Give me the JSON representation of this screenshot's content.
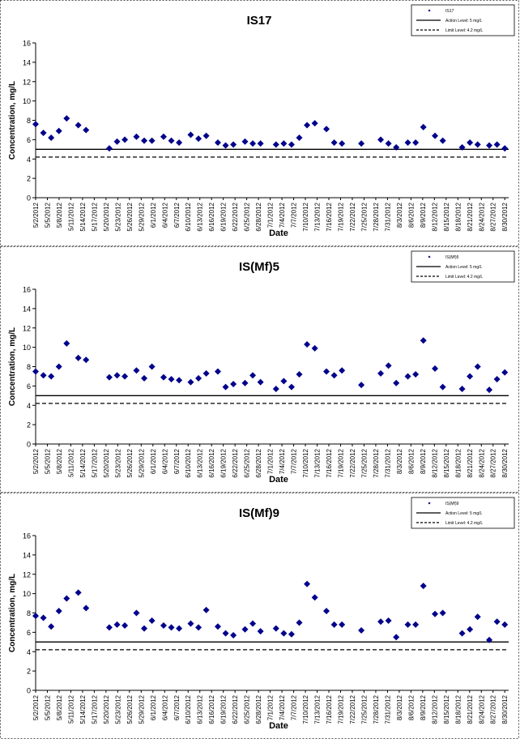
{
  "chart_data": [
    {
      "type": "scatter",
      "title": "IS17",
      "xlabel": "Date",
      "ylabel": "Concentration, mg/L",
      "ylim": [
        0,
        16
      ],
      "yticks": [
        "0",
        "2",
        "4",
        "6",
        "8",
        "10",
        "12",
        "14",
        "16"
      ],
      "xlim": [
        "2012-05-02",
        "2012-09-01"
      ],
      "date_tick_labels": [
        "5/2/2012",
        "5/5/2012",
        "5/8/2012",
        "5/11/2012",
        "5/14/2012",
        "5/17/2012",
        "5/20/2012",
        "5/23/2012",
        "5/26/2012",
        "5/29/2012",
        "6/1/2012",
        "6/4/2012",
        "6/7/2012",
        "6/10/2012",
        "6/13/2012",
        "6/16/2012",
        "6/19/2012",
        "6/22/2012",
        "6/25/2012",
        "6/28/2012",
        "7/1/2012",
        "7/4/2012",
        "7/7/2012",
        "7/10/2012",
        "7/13/2012",
        "7/16/2012",
        "7/19/2012",
        "7/22/2012",
        "7/25/2012",
        "7/28/2012",
        "7/31/2012",
        "8/3/2012",
        "8/6/2012",
        "8/9/2012",
        "8/12/2012",
        "8/15/2012",
        "8/18/2012",
        "8/21/2012",
        "8/24/2012",
        "8/27/2012",
        "8/30/2012"
      ],
      "legend": {
        "placement": "top-right",
        "entries": [
          "IS17",
          "Action Level: 5 mg/L",
          "Limit Level: 4.2 mg/L"
        ]
      },
      "lines": [
        {
          "value": 5,
          "style": "solid",
          "color": "#000000"
        },
        {
          "value": 4.2,
          "style": "dashed",
          "color": "#000000"
        }
      ],
      "series": [
        {
          "name": "IS17",
          "color": "#00008B",
          "marker": "diamond",
          "points": [
            [
              "2012-05-02",
              7.6
            ],
            [
              "2012-05-04",
              6.7
            ],
            [
              "2012-05-06",
              6.2
            ],
            [
              "2012-05-08",
              6.9
            ],
            [
              "2012-05-10",
              8.2
            ],
            [
              "2012-05-13",
              7.5
            ],
            [
              "2012-05-15",
              7.0
            ],
            [
              "2012-05-21",
              5.1
            ],
            [
              "2012-05-23",
              5.8
            ],
            [
              "2012-05-25",
              6.0
            ],
            [
              "2012-05-28",
              6.3
            ],
            [
              "2012-05-30",
              5.9
            ],
            [
              "2012-06-01",
              5.9
            ],
            [
              "2012-06-04",
              6.3
            ],
            [
              "2012-06-06",
              5.9
            ],
            [
              "2012-06-08",
              5.7
            ],
            [
              "2012-06-11",
              6.5
            ],
            [
              "2012-06-13",
              6.1
            ],
            [
              "2012-06-15",
              6.4
            ],
            [
              "2012-06-18",
              5.7
            ],
            [
              "2012-06-20",
              5.4
            ],
            [
              "2012-06-22",
              5.5
            ],
            [
              "2012-06-25",
              5.8
            ],
            [
              "2012-06-27",
              5.6
            ],
            [
              "2012-06-29",
              5.6
            ],
            [
              "2012-07-03",
              5.5
            ],
            [
              "2012-07-05",
              5.6
            ],
            [
              "2012-07-07",
              5.5
            ],
            [
              "2012-07-09",
              6.2
            ],
            [
              "2012-07-11",
              7.5
            ],
            [
              "2012-07-13",
              7.7
            ],
            [
              "2012-07-16",
              7.1
            ],
            [
              "2012-07-18",
              5.7
            ],
            [
              "2012-07-20",
              5.6
            ],
            [
              "2012-07-25",
              5.6
            ],
            [
              "2012-07-30",
              6.0
            ],
            [
              "2012-08-01",
              5.6
            ],
            [
              "2012-08-03",
              5.2
            ],
            [
              "2012-08-06",
              5.7
            ],
            [
              "2012-08-08",
              5.7
            ],
            [
              "2012-08-10",
              7.3
            ],
            [
              "2012-08-13",
              6.4
            ],
            [
              "2012-08-15",
              5.9
            ],
            [
              "2012-08-20",
              5.2
            ],
            [
              "2012-08-22",
              5.7
            ],
            [
              "2012-08-24",
              5.5
            ],
            [
              "2012-08-27",
              5.4
            ],
            [
              "2012-08-29",
              5.5
            ],
            [
              "2012-08-31",
              5.1
            ]
          ]
        }
      ]
    },
    {
      "type": "scatter",
      "title": "IS(Mf)5",
      "xlabel": "Date",
      "ylabel": "Concentration, mg/L",
      "ylim": [
        0,
        16
      ],
      "yticks": [
        "0",
        "2",
        "4",
        "6",
        "8",
        "10",
        "12",
        "14",
        "16"
      ],
      "xlim": [
        "2012-05-02",
        "2012-09-01"
      ],
      "date_tick_labels": [
        "5/2/2012",
        "5/5/2012",
        "5/8/2012",
        "5/11/2012",
        "5/14/2012",
        "5/17/2012",
        "5/20/2012",
        "5/23/2012",
        "5/26/2012",
        "5/29/2012",
        "6/1/2012",
        "6/4/2012",
        "6/7/2012",
        "6/10/2012",
        "6/13/2012",
        "6/16/2012",
        "6/19/2012",
        "6/22/2012",
        "6/25/2012",
        "6/28/2012",
        "7/1/2012",
        "7/4/2012",
        "7/7/2012",
        "7/10/2012",
        "7/13/2012",
        "7/16/2012",
        "7/19/2012",
        "7/22/2012",
        "7/25/2012",
        "7/28/2012",
        "7/31/2012",
        "8/3/2012",
        "8/6/2012",
        "8/9/2012",
        "8/12/2012",
        "8/15/2012",
        "8/18/2012",
        "8/21/2012",
        "8/24/2012",
        "8/27/2012",
        "8/30/2012"
      ],
      "legend": {
        "placement": "top-right",
        "entries": [
          "IS(Mf)5",
          "Action Level: 5 mg/L",
          "Limit Level: 4.2 mg/L"
        ]
      },
      "lines": [
        {
          "value": 5,
          "style": "solid",
          "color": "#000000"
        },
        {
          "value": 4.2,
          "style": "dashed",
          "color": "#000000"
        }
      ],
      "series": [
        {
          "name": "IS(Mf)5",
          "color": "#00008B",
          "marker": "diamond",
          "points": [
            [
              "2012-05-02",
              7.5
            ],
            [
              "2012-05-04",
              7.1
            ],
            [
              "2012-05-06",
              7.0
            ],
            [
              "2012-05-08",
              8.0
            ],
            [
              "2012-05-10",
              10.4
            ],
            [
              "2012-05-13",
              8.9
            ],
            [
              "2012-05-15",
              8.7
            ],
            [
              "2012-05-21",
              6.9
            ],
            [
              "2012-05-23",
              7.1
            ],
            [
              "2012-05-25",
              7.0
            ],
            [
              "2012-05-28",
              7.6
            ],
            [
              "2012-05-30",
              6.8
            ],
            [
              "2012-06-01",
              8.0
            ],
            [
              "2012-06-04",
              6.9
            ],
            [
              "2012-06-06",
              6.7
            ],
            [
              "2012-06-08",
              6.6
            ],
            [
              "2012-06-11",
              6.4
            ],
            [
              "2012-06-13",
              6.8
            ],
            [
              "2012-06-15",
              7.3
            ],
            [
              "2012-06-18",
              7.5
            ],
            [
              "2012-06-20",
              5.9
            ],
            [
              "2012-06-22",
              6.2
            ],
            [
              "2012-06-25",
              6.3
            ],
            [
              "2012-06-27",
              7.1
            ],
            [
              "2012-06-29",
              6.4
            ],
            [
              "2012-07-03",
              5.7
            ],
            [
              "2012-07-05",
              6.5
            ],
            [
              "2012-07-07",
              5.9
            ],
            [
              "2012-07-09",
              7.2
            ],
            [
              "2012-07-11",
              10.3
            ],
            [
              "2012-07-13",
              9.9
            ],
            [
              "2012-07-16",
              7.5
            ],
            [
              "2012-07-18",
              7.1
            ],
            [
              "2012-07-20",
              7.6
            ],
            [
              "2012-07-25",
              6.1
            ],
            [
              "2012-07-30",
              7.3
            ],
            [
              "2012-08-01",
              8.1
            ],
            [
              "2012-08-03",
              6.3
            ],
            [
              "2012-08-06",
              7.0
            ],
            [
              "2012-08-08",
              7.2
            ],
            [
              "2012-08-10",
              10.7
            ],
            [
              "2012-08-13",
              7.8
            ],
            [
              "2012-08-15",
              5.9
            ],
            [
              "2012-08-20",
              5.7
            ],
            [
              "2012-08-22",
              7.0
            ],
            [
              "2012-08-24",
              8.0
            ],
            [
              "2012-08-27",
              5.6
            ],
            [
              "2012-08-29",
              6.7
            ],
            [
              "2012-08-31",
              7.4
            ]
          ]
        }
      ]
    },
    {
      "type": "scatter",
      "title": "IS(Mf)9",
      "xlabel": "Date",
      "ylabel": "Concentration, mg/L",
      "ylim": [
        0,
        16
      ],
      "yticks": [
        "0",
        "2",
        "4",
        "6",
        "8",
        "10",
        "12",
        "14",
        "16"
      ],
      "xlim": [
        "2012-05-02",
        "2012-09-01"
      ],
      "date_tick_labels": [
        "5/2/2012",
        "5/5/2012",
        "5/8/2012",
        "5/11/2012",
        "5/14/2012",
        "5/17/2012",
        "5/20/2012",
        "5/23/2012",
        "5/26/2012",
        "5/29/2012",
        "6/1/2012",
        "6/4/2012",
        "6/7/2012",
        "6/10/2012",
        "6/13/2012",
        "6/16/2012",
        "6/19/2012",
        "6/22/2012",
        "6/25/2012",
        "6/28/2012",
        "7/1/2012",
        "7/4/2012",
        "7/7/2012",
        "7/10/2012",
        "7/13/2012",
        "7/16/2012",
        "7/19/2012",
        "7/22/2012",
        "7/25/2012",
        "7/28/2012",
        "7/31/2012",
        "8/3/2012",
        "8/6/2012",
        "8/9/2012",
        "8/12/2012",
        "8/15/2012",
        "8/18/2012",
        "8/21/2012",
        "8/24/2012",
        "8/27/2012",
        "8/30/2012"
      ],
      "legend": {
        "placement": "top-right",
        "entries": [
          "IS(Mf)9",
          "Action Level: 5 mg/L",
          "Limit Level: 4.2 mg/L"
        ]
      },
      "lines": [
        {
          "value": 5,
          "style": "solid",
          "color": "#000000"
        },
        {
          "value": 4.2,
          "style": "dashed",
          "color": "#000000"
        }
      ],
      "series": [
        {
          "name": "IS(Mf)9",
          "color": "#00008B",
          "marker": "diamond",
          "points": [
            [
              "2012-05-02",
              7.7
            ],
            [
              "2012-05-04",
              7.5
            ],
            [
              "2012-05-06",
              6.6
            ],
            [
              "2012-05-08",
              8.2
            ],
            [
              "2012-05-10",
              9.5
            ],
            [
              "2012-05-13",
              10.1
            ],
            [
              "2012-05-15",
              8.5
            ],
            [
              "2012-05-21",
              6.5
            ],
            [
              "2012-05-23",
              6.8
            ],
            [
              "2012-05-25",
              6.7
            ],
            [
              "2012-05-28",
              8.0
            ],
            [
              "2012-05-30",
              6.4
            ],
            [
              "2012-06-01",
              7.2
            ],
            [
              "2012-06-04",
              6.7
            ],
            [
              "2012-06-06",
              6.5
            ],
            [
              "2012-06-08",
              6.4
            ],
            [
              "2012-06-11",
              6.9
            ],
            [
              "2012-06-13",
              6.5
            ],
            [
              "2012-06-15",
              8.3
            ],
            [
              "2012-06-18",
              6.6
            ],
            [
              "2012-06-20",
              5.9
            ],
            [
              "2012-06-22",
              5.7
            ],
            [
              "2012-06-25",
              6.3
            ],
            [
              "2012-06-27",
              6.9
            ],
            [
              "2012-06-29",
              6.1
            ],
            [
              "2012-07-03",
              6.4
            ],
            [
              "2012-07-05",
              5.9
            ],
            [
              "2012-07-07",
              5.8
            ],
            [
              "2012-07-09",
              7.0
            ],
            [
              "2012-07-11",
              11.0
            ],
            [
              "2012-07-13",
              9.6
            ],
            [
              "2012-07-16",
              8.2
            ],
            [
              "2012-07-18",
              6.8
            ],
            [
              "2012-07-20",
              6.8
            ],
            [
              "2012-07-25",
              6.2
            ],
            [
              "2012-07-30",
              7.1
            ],
            [
              "2012-08-01",
              7.2
            ],
            [
              "2012-08-03",
              5.5
            ],
            [
              "2012-08-06",
              6.8
            ],
            [
              "2012-08-08",
              6.8
            ],
            [
              "2012-08-10",
              10.8
            ],
            [
              "2012-08-13",
              7.9
            ],
            [
              "2012-08-15",
              8.0
            ],
            [
              "2012-08-20",
              5.9
            ],
            [
              "2012-08-22",
              6.3
            ],
            [
              "2012-08-24",
              7.6
            ],
            [
              "2012-08-27",
              5.2
            ],
            [
              "2012-08-29",
              7.1
            ],
            [
              "2012-08-31",
              6.8
            ]
          ]
        }
      ]
    }
  ]
}
